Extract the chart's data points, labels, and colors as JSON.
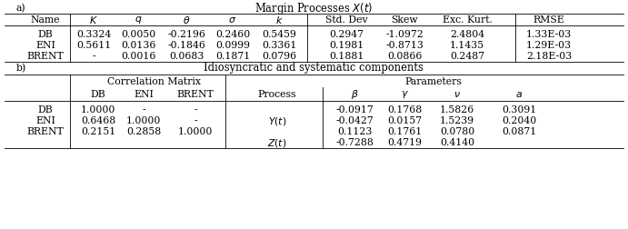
{
  "title_a": "Margin Processes $X(t)$",
  "title_b": "Idiosyncratic and systematic components",
  "label_a": "a)",
  "label_b": "b)",
  "table_a_headers": [
    "Name",
    "$K$",
    "$q$",
    "$\\theta$",
    "$\\sigma$",
    "$k$",
    "Std. Dev",
    "Skew",
    "Exc. Kurt.",
    "RMSE"
  ],
  "table_a_rows": [
    [
      "DB",
      "0.3324",
      "0.0050",
      "-0.2196",
      "0.2460",
      "0.5459",
      "0.2947",
      "-1.0972",
      "2.4804",
      "1.33E-03"
    ],
    [
      "ENI",
      "0.5611",
      "0.0136",
      "-0.1846",
      "0.0999",
      "0.3361",
      "0.1981",
      "-0.8713",
      "1.1435",
      "1.29E-03"
    ],
    [
      "BRENT",
      "-",
      "0.0016",
      "0.0683",
      "0.1871",
      "0.0796",
      "0.1881",
      "0.0866",
      "0.2487",
      "2.18E-03"
    ]
  ],
  "corr_header": "Correlation Matrix",
  "param_header": "Parameters",
  "table_b_col2_headers": [
    "DB",
    "ENI",
    "BRENT"
  ],
  "process_header": "Process",
  "param_col_headers": [
    "$\\beta$",
    "$\\gamma$",
    "$\\nu$",
    "$a$"
  ],
  "table_b_rows": [
    [
      "DB",
      "1.0000",
      "-",
      "-",
      "",
      "-0.0917",
      "0.1768",
      "1.5826",
      "0.3091"
    ],
    [
      "ENI",
      "0.6468",
      "1.0000",
      "-",
      "$Y(t)$",
      "-0.0427",
      "0.0157",
      "1.5239",
      "0.2040"
    ],
    [
      "BRENT",
      "0.2151",
      "0.2858",
      "1.0000",
      "",
      "0.1123",
      "0.1761",
      "0.0780",
      "0.0871"
    ],
    [
      "",
      "",
      "",
      "",
      "$Z(t)$",
      "-0.7288",
      "0.4719",
      "0.4140",
      ""
    ]
  ],
  "bg_color": "#ffffff",
  "line_color": "#000000",
  "text_color": "#000000",
  "fontsize": 7.8
}
